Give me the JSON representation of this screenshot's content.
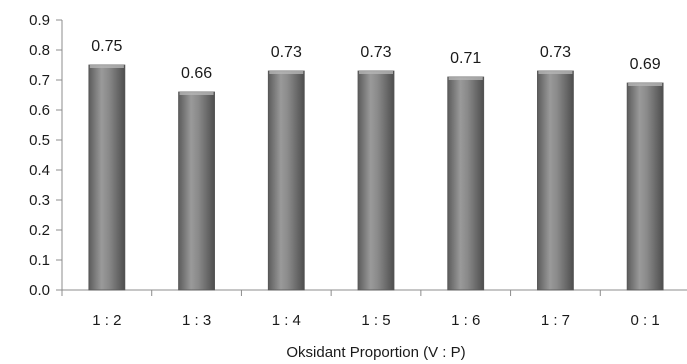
{
  "chart_data": {
    "type": "bar",
    "categories": [
      "1 : 2",
      "1 : 3",
      "1 : 4",
      "1 : 5",
      "1 : 6",
      "1 : 7",
      "0 : 1"
    ],
    "values": [
      0.75,
      0.66,
      0.73,
      0.73,
      0.71,
      0.73,
      0.69
    ],
    "value_labels": [
      "0.75",
      "0.66",
      "0.73",
      "0.73",
      "0.71",
      "0.73",
      "0.69"
    ],
    "yticks": [
      "0.0",
      "0.1",
      "0.2",
      "0.3",
      "0.4",
      "0.5",
      "0.6",
      "0.7",
      "0.8",
      "0.9"
    ],
    "ylim": [
      0,
      0.9
    ],
    "xlabel": "Oksidant Proportion (V : P)",
    "ylabel": "",
    "title": "",
    "grid": false,
    "legend": "none",
    "bar_color": "#7a7a7a"
  }
}
